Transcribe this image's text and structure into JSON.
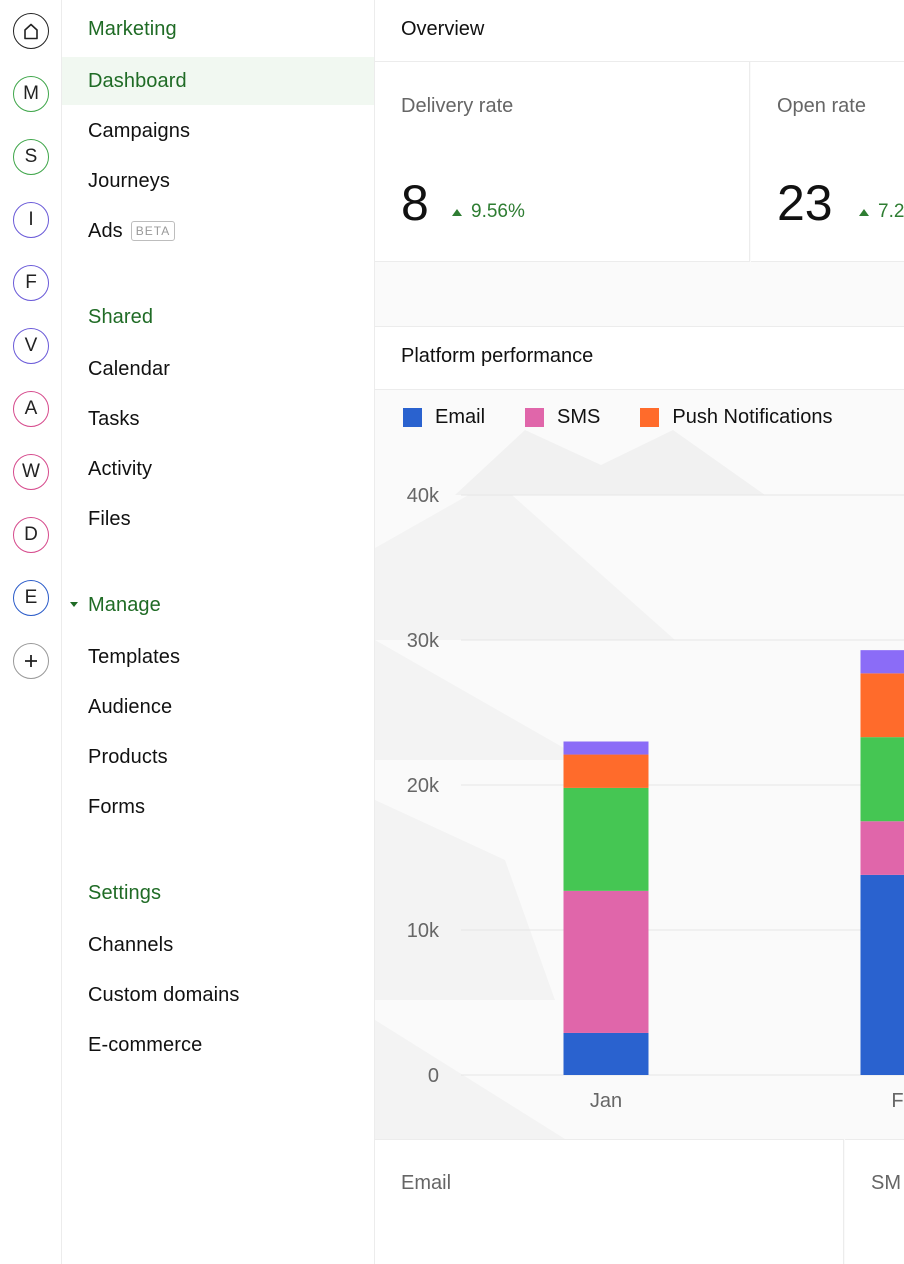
{
  "rail": {
    "buttons": [
      {
        "letter": "",
        "icon": "home-icon",
        "color": "#222222"
      },
      {
        "letter": "M",
        "color": "#3fa64a"
      },
      {
        "letter": "S",
        "color": "#3fa64a"
      },
      {
        "letter": "I",
        "color": "#6a5ad8"
      },
      {
        "letter": "F",
        "color": "#6a5ad8"
      },
      {
        "letter": "V",
        "color": "#6a5ad8"
      },
      {
        "letter": "A",
        "color": "#d64a8c"
      },
      {
        "letter": "W",
        "color": "#d64a8c"
      },
      {
        "letter": "D",
        "color": "#d64a8c"
      },
      {
        "letter": "E",
        "color": "#2a5bc9"
      },
      {
        "letter": "+",
        "icon": "plus-icon",
        "color": "#999999"
      }
    ]
  },
  "sidebar": {
    "marketing": {
      "heading": "Marketing",
      "items": [
        "Dashboard",
        "Campaigns",
        "Journeys",
        "Ads"
      ],
      "active": "Dashboard",
      "ads_badge": "BETA"
    },
    "shared": {
      "heading": "Shared",
      "items": [
        "Calendar",
        "Tasks",
        "Activity",
        "Files"
      ]
    },
    "manage": {
      "heading": "Manage",
      "items": [
        "Templates",
        "Audience",
        "Products",
        "Forms"
      ]
    },
    "settings": {
      "heading": "Settings",
      "items": [
        "Channels",
        "Custom domains",
        "E-commerce"
      ]
    }
  },
  "overview": {
    "title": "Overview",
    "kpis": [
      {
        "label": "Delivery rate",
        "value": "8",
        "delta": "9.56%"
      },
      {
        "label": "Open rate",
        "value": "23",
        "delta": "7.2"
      }
    ]
  },
  "performance": {
    "title": "Platform performance"
  },
  "bottom_cards": [
    {
      "label": "Email"
    },
    {
      "label": "SM"
    }
  ],
  "colors": {
    "accent_green": "#1f6b25",
    "email": "#2a62cf",
    "sms": "#e066aa",
    "push": "#ff6b2b",
    "green_series": "#45c653",
    "purple_series": "#8b6cf7"
  },
  "chart_data": {
    "type": "bar",
    "stacked": true,
    "categories": [
      "Jan",
      "Fe"
    ],
    "ylim": [
      0,
      40000
    ],
    "yticks": [
      "0",
      "10k",
      "20k",
      "30k",
      "40k"
    ],
    "ytick_values": [
      0,
      10000,
      20000,
      30000,
      40000
    ],
    "grid": true,
    "legend_position": "top-left",
    "legend": [
      "Email",
      "SMS",
      "Push Notifications"
    ],
    "series": [
      {
        "name": "Email",
        "color": "#2a62cf",
        "values": [
          2900,
          13800
        ]
      },
      {
        "name": "SMS",
        "color": "#e066aa",
        "values": [
          9800,
          3700
        ]
      },
      {
        "color": "#45c653",
        "values": [
          7100,
          5800
        ]
      },
      {
        "name": "Push Notifications",
        "color": "#ff6b2b",
        "values": [
          2300,
          4400
        ]
      },
      {
        "color": "#8b6cf7",
        "values": [
          900,
          1600
        ]
      }
    ]
  }
}
